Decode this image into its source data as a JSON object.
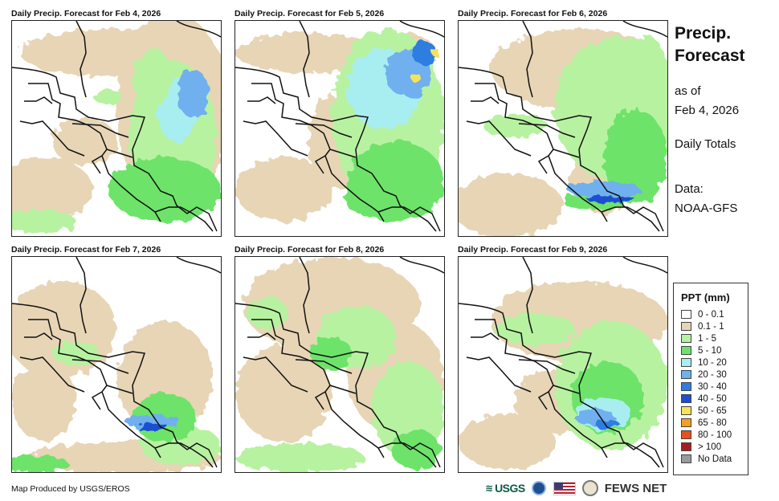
{
  "panels": [
    {
      "title": "Daily Precip. Forecast for Feb 4, 2026"
    },
    {
      "title": "Daily Precip. Forecast for Feb 5, 2026"
    },
    {
      "title": "Daily Precip. Forecast for Feb 6, 2026"
    },
    {
      "title": "Daily Precip. Forecast for Feb 7, 2026"
    },
    {
      "title": "Daily Precip. Forecast for Feb 8, 2026"
    },
    {
      "title": "Daily Precip. Forecast for Feb 9, 2026"
    }
  ],
  "side": {
    "title_line1": "Precip.",
    "title_line2": "Forecast",
    "asof_line1": "as of",
    "asof_line2": "Feb 4, 2026",
    "totals": "Daily Totals",
    "data_line1": "Data:",
    "data_line2": "NOAA-GFS"
  },
  "legend": {
    "title": "PPT (mm)",
    "items": [
      {
        "label": "0 - 0.1",
        "color": "#ffffff"
      },
      {
        "label": "0.1 - 1",
        "color": "#e7d5b5"
      },
      {
        "label": "1 - 5",
        "color": "#b7f2a1"
      },
      {
        "label": "5 - 10",
        "color": "#6de36a"
      },
      {
        "label": "10 - 20",
        "color": "#a8eef0"
      },
      {
        "label": "20 - 30",
        "color": "#6fb0ee"
      },
      {
        "label": "30 - 40",
        "color": "#2f7de0"
      },
      {
        "label": "40 - 50",
        "color": "#1d4fd0"
      },
      {
        "label": "50 - 65",
        "color": "#f7e35a"
      },
      {
        "label": "65 - 80",
        "color": "#f2a21f"
      },
      {
        "label": "80 - 100",
        "color": "#e8501c"
      },
      {
        "label": "> 100",
        "color": "#a81e1e"
      },
      {
        "label": "No Data",
        "color": "#9a9a9a"
      }
    ]
  },
  "footer": {
    "credit": "Map Produced by USGS/EROS",
    "usgs": "USGS",
    "fews": "FEWS NET"
  },
  "icons": [
    "usgs-logo-icon",
    "noaa-logo-icon",
    "us-flag-icon",
    "usda-seal-icon"
  ]
}
